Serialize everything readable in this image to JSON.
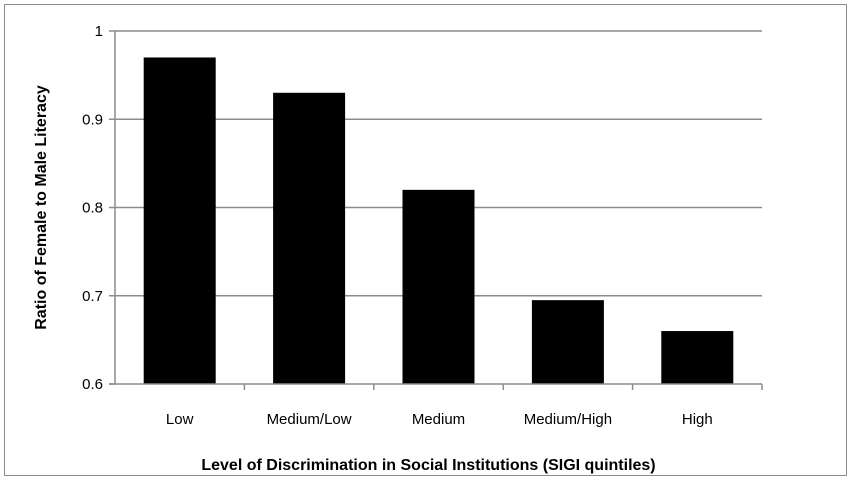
{
  "chart_data": {
    "type": "bar",
    "title": "",
    "xlabel": "Level of Discrimination in Social Institutions (SIGI quintiles)",
    "ylabel": "Ratio of Female to Male Literacy",
    "categories": [
      "Low",
      "Medium/Low",
      "Medium",
      "Medium/High",
      "High"
    ],
    "values": [
      0.97,
      0.93,
      0.82,
      0.695,
      0.66
    ],
    "ylim": [
      0.6,
      1.0
    ],
    "yticks": [
      0.6,
      0.7,
      0.8,
      0.9,
      1.0
    ],
    "ytick_labels": [
      "0.6",
      "0.7",
      "0.8",
      "0.9",
      "1"
    ],
    "grid": true,
    "legend": "none",
    "bar_color": "#000000",
    "grid_color": "#8c8c8c"
  }
}
